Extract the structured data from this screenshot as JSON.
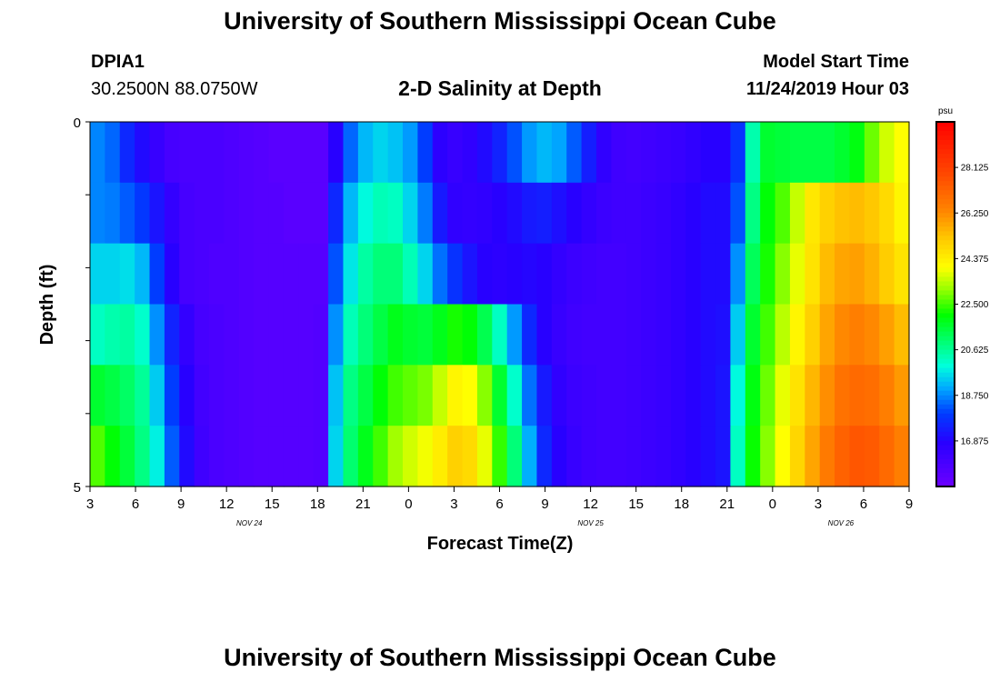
{
  "page": {
    "title_top": "University of Southern Mississippi Ocean Cube",
    "title_bottom": "University of Southern Mississippi Ocean Cube",
    "station_id": "DPIA1",
    "station_coords": "30.2500N 88.0750W",
    "plot_title": "2-D Salinity at Depth",
    "model_start_label": "Model Start Time",
    "model_start_value": "11/24/2019 Hour 03"
  },
  "chart_data": {
    "type": "heatmap",
    "title": "2-D Salinity at Depth",
    "xlabel": "Forecast Time(Z)",
    "ylabel": "Depth (ft)",
    "units": "psu",
    "x_tick_labels": [
      "3",
      "6",
      "9",
      "12",
      "15",
      "18",
      "21",
      "0",
      "3",
      "6",
      "9",
      "12",
      "15",
      "18",
      "21",
      "0",
      "3",
      "6",
      "9"
    ],
    "x_date_labels": [
      {
        "text": "NOV 24",
        "at_tick": 3.5
      },
      {
        "text": "NOV 25",
        "at_tick": 11
      },
      {
        "text": "NOV 26",
        "at_tick": 16.5
      }
    ],
    "y_tick_labels": [
      "0",
      "5"
    ],
    "y_range": [
      0,
      5
    ],
    "n_time_steps": 55,
    "n_depth_levels": 6,
    "colorbar": {
      "min": 15.0,
      "max": 30.0,
      "tick_values": [
        16.875,
        18.75,
        20.625,
        22.5,
        24.375,
        26.25,
        28.125
      ],
      "tick_labels": [
        "16.875",
        "18.750",
        "20.625",
        "22.500",
        "24.375",
        "26.250",
        "28.125"
      ]
    },
    "salinity_psu": [
      [
        18.7,
        18.4,
        17.6,
        17.0,
        16.4,
        16.0,
        15.9,
        15.9,
        15.9,
        15.8,
        15.7,
        15.6,
        15.5,
        15.5,
        15.5,
        15.5,
        16.8,
        18.4,
        19.2,
        19.5,
        19.3,
        18.9,
        18.0,
        16.7,
        16.4,
        16.6,
        17.0,
        17.5,
        18.2,
        18.9,
        19.2,
        19.0,
        18.3,
        17.4,
        16.6,
        16.2,
        16.1,
        16.2,
        16.3,
        16.4,
        16.6,
        16.8,
        16.8,
        17.8,
        20.4,
        21.6,
        21.5,
        21.4,
        21.4,
        21.4,
        21.6,
        21.9,
        22.8,
        23.6,
        24.0
      ],
      [
        18.7,
        18.6,
        18.3,
        17.9,
        17.2,
        16.5,
        16.0,
        15.9,
        15.9,
        15.8,
        15.7,
        15.6,
        15.6,
        15.5,
        15.5,
        15.5,
        17.6,
        19.2,
        19.9,
        20.3,
        20.2,
        19.5,
        18.6,
        17.3,
        16.6,
        16.5,
        16.6,
        16.8,
        17.0,
        17.3,
        17.4,
        17.1,
        16.8,
        16.5,
        16.3,
        16.2,
        16.2,
        16.3,
        16.4,
        16.6,
        16.8,
        17.0,
        17.0,
        18.2,
        20.8,
        22.0,
        22.6,
        23.5,
        24.5,
        25.0,
        25.3,
        25.4,
        25.2,
        24.8,
        24.2
      ],
      [
        19.5,
        19.5,
        19.6,
        19.2,
        18.0,
        16.8,
        16.0,
        15.9,
        15.8,
        15.8,
        15.7,
        15.6,
        15.6,
        15.6,
        15.6,
        15.6,
        18.2,
        19.7,
        20.5,
        20.9,
        20.9,
        20.3,
        19.5,
        18.5,
        17.8,
        17.2,
        16.8,
        16.7,
        16.8,
        16.9,
        16.8,
        16.5,
        16.3,
        16.2,
        16.1,
        16.1,
        16.2,
        16.3,
        16.4,
        16.6,
        16.8,
        17.0,
        17.0,
        18.8,
        21.2,
        22.2,
        23.0,
        23.8,
        24.6,
        25.4,
        25.8,
        25.9,
        25.6,
        25.1,
        24.6
      ],
      [
        20.2,
        20.4,
        20.5,
        20.1,
        18.8,
        17.5,
        16.5,
        16.0,
        15.9,
        15.8,
        15.7,
        15.6,
        15.6,
        15.6,
        15.6,
        15.7,
        18.8,
        20.3,
        20.9,
        21.4,
        21.8,
        21.6,
        21.5,
        21.8,
        22.2,
        22.0,
        21.3,
        20.2,
        18.9,
        17.6,
        16.8,
        16.4,
        16.2,
        16.1,
        16.1,
        16.1,
        16.2,
        16.3,
        16.4,
        16.6,
        16.8,
        17.0,
        17.1,
        19.4,
        21.6,
        22.5,
        23.4,
        24.2,
        25.0,
        25.8,
        26.3,
        26.5,
        26.3,
        25.9,
        25.4
      ],
      [
        21.6,
        21.4,
        21.1,
        20.6,
        19.4,
        18.0,
        16.8,
        16.1,
        15.9,
        15.8,
        15.7,
        15.6,
        15.6,
        15.6,
        15.6,
        15.7,
        19.3,
        20.8,
        21.4,
        22.0,
        22.5,
        22.7,
        22.9,
        23.5,
        24.2,
        24.0,
        23.0,
        21.6,
        20.1,
        18.5,
        17.3,
        16.6,
        16.3,
        16.2,
        16.1,
        16.1,
        16.2,
        16.3,
        16.4,
        16.6,
        16.8,
        17.0,
        17.2,
        19.9,
        21.9,
        22.8,
        23.8,
        24.6,
        25.5,
        26.2,
        26.8,
        27.0,
        26.9,
        26.5,
        26.0
      ],
      [
        22.6,
        22.0,
        21.5,
        20.8,
        19.8,
        18.3,
        17.0,
        16.2,
        15.9,
        15.8,
        15.7,
        15.6,
        15.6,
        15.6,
        15.6,
        15.7,
        19.5,
        21.0,
        21.8,
        22.5,
        23.2,
        23.6,
        23.9,
        24.4,
        25.0,
        24.8,
        23.8,
        22.4,
        20.9,
        19.1,
        17.6,
        16.8,
        16.4,
        16.2,
        16.1,
        16.1,
        16.2,
        16.3,
        16.4,
        16.6,
        16.8,
        17.0,
        17.2,
        20.2,
        22.1,
        23.0,
        24.0,
        24.9,
        25.8,
        26.6,
        27.2,
        27.5,
        27.4,
        27.0,
        26.5
      ]
    ]
  }
}
